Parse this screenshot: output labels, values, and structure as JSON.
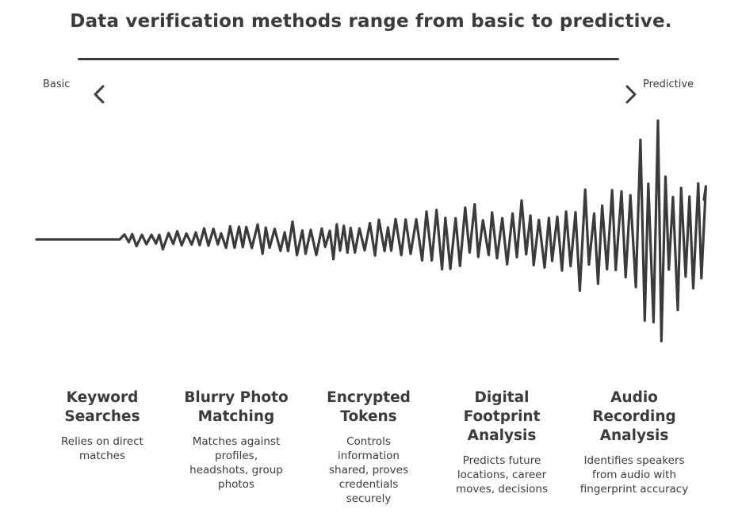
{
  "title": "Data verification methods range from basic to predictive.",
  "scale": {
    "left_label": "Basic",
    "right_label": "Predictive"
  },
  "stages": [
    {
      "title": "Keyword Searches",
      "description": "Relies on direct matches"
    },
    {
      "title": "Blurry Photo Matching",
      "description": "Matches against profiles, headshots, group photos"
    },
    {
      "title": "Encrypted Tokens",
      "description": "Controls information shared, proves credentials securely"
    },
    {
      "title": "Digital Footprint Analysis",
      "description": "Predicts future locations, career moves, decisions"
    },
    {
      "title": "Audio Recording Analysis",
      "description": "Identifies speakers from audio with fingerprint accuracy"
    }
  ],
  "icons": {
    "left": "chevron-left-icon",
    "right": "chevron-right-icon"
  },
  "colors": {
    "ink": "#3b3b3b",
    "background": "#ffffff"
  }
}
